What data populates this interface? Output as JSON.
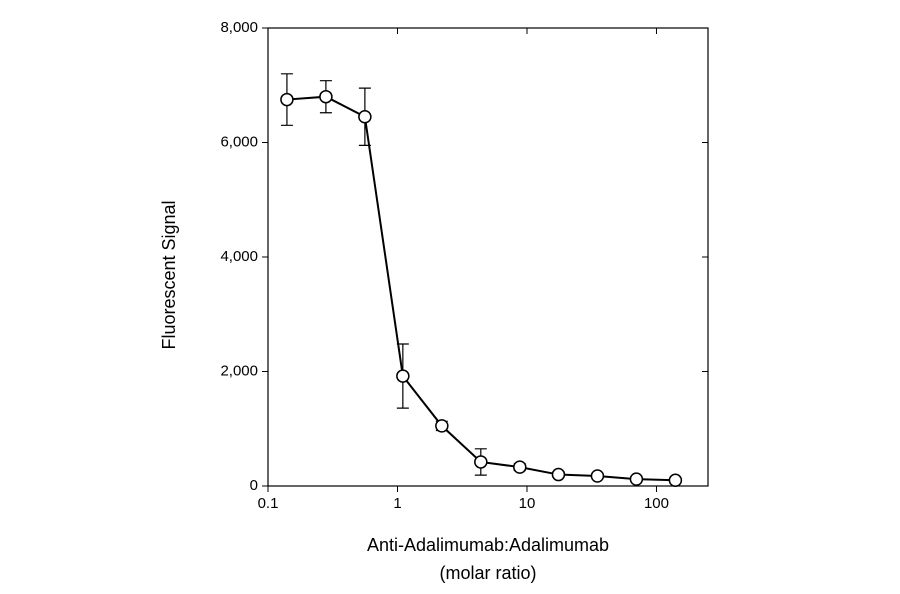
{
  "chart_data": {
    "type": "line",
    "ylabel": "Fluorescent Signal",
    "xlabel": [
      "Anti-Adalimumab:Adalimumab",
      "(molar ratio)"
    ],
    "xscale": "log",
    "x": [
      0.14,
      0.28,
      0.56,
      1.1,
      2.2,
      4.4,
      8.8,
      17.5,
      35,
      70,
      140
    ],
    "series": [
      {
        "color": "#000000",
        "values": [
          6750,
          6800,
          6450,
          1920,
          1050,
          420,
          330,
          200,
          175,
          120,
          100
        ],
        "errors": [
          450,
          280,
          500,
          560,
          80,
          230,
          60,
          50,
          40,
          40,
          40
        ]
      }
    ],
    "xlim": [
      0.1,
      250
    ],
    "xticks": [
      0.1,
      1,
      10,
      100
    ],
    "ylim": [
      0,
      8000
    ],
    "yticks": [
      0,
      {
        "value": 2000,
        "label": "2,000"
      },
      {
        "value": 4000,
        "label": "4,000"
      },
      {
        "value": 6000,
        "label": "6,000"
      },
      {
        "value": 8000,
        "label": "8,000"
      }
    ]
  }
}
